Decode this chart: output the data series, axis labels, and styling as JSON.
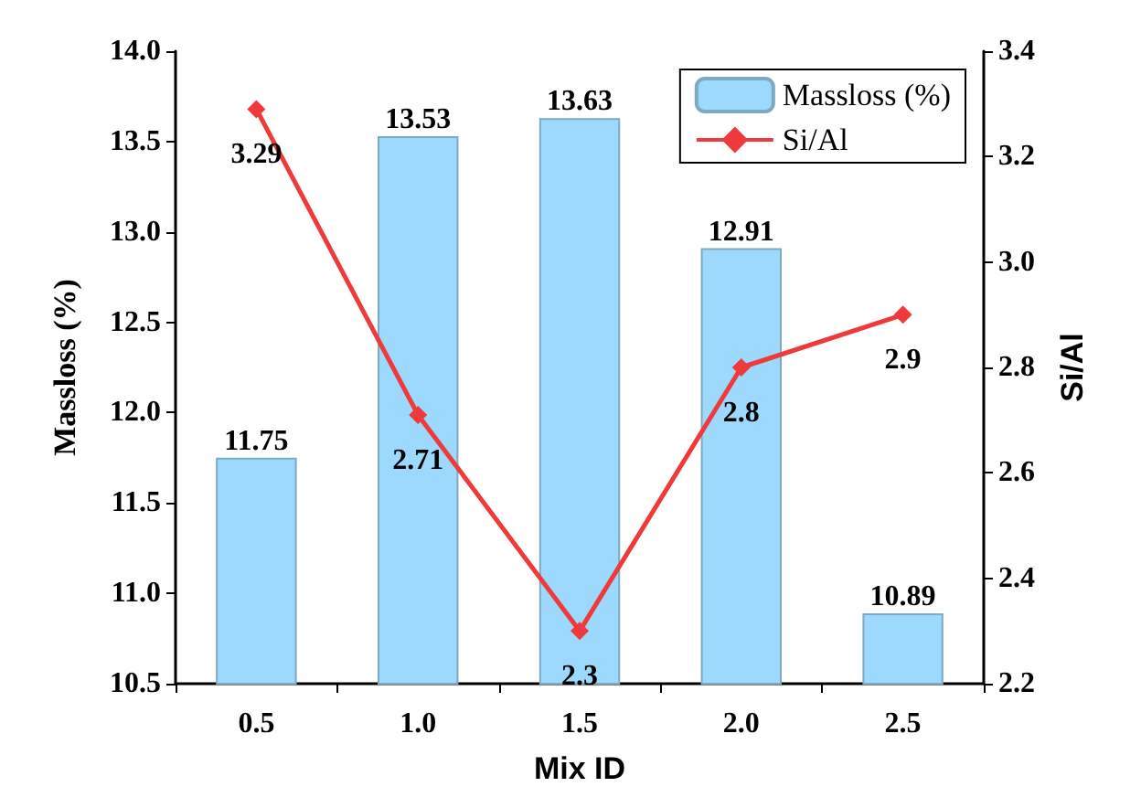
{
  "chart_data": {
    "type": "bar",
    "categories": [
      "0.5",
      "1.0",
      "1.5",
      "2.0",
      "2.5"
    ],
    "xlabel": "Mix ID",
    "ylabel": "Massloss (%)",
    "y2label": "Si/Al",
    "series": [
      {
        "name": "Massloss (%)",
        "color": "#9dd9fc",
        "values": [
          11.75,
          13.53,
          13.63,
          12.91,
          10.89
        ]
      },
      {
        "name": "Si/Al",
        "type": "line",
        "axis": "y2",
        "color": "#ee3a3a",
        "marker": "diamond",
        "values": [
          3.29,
          2.71,
          2.3,
          2.8,
          2.9
        ]
      }
    ],
    "ylim": [
      10.5,
      14
    ],
    "yticks": [
      {
        "value": 10.5,
        "label": "10.5"
      },
      {
        "value": 11,
        "label": "11.0"
      },
      {
        "value": 11.5,
        "label": "11.5"
      },
      {
        "value": 12,
        "label": "12.0"
      },
      {
        "value": 12.5,
        "label": "12.5"
      },
      {
        "value": 13,
        "label": "13.0"
      },
      {
        "value": 13.5,
        "label": "13.5"
      },
      {
        "value": 14,
        "label": "14.0"
      }
    ],
    "y2lim": [
      2.2,
      3.4
    ],
    "y2ticks": [
      {
        "value": 2.2,
        "label": "2.2"
      },
      {
        "value": 2.4,
        "label": "2.4"
      },
      {
        "value": 2.6,
        "label": "2.6"
      },
      {
        "value": 2.8,
        "label": "2.8"
      },
      {
        "value": 3,
        "label": "3.0"
      },
      {
        "value": 3.2,
        "label": "3.2"
      },
      {
        "value": 3.4,
        "label": "3.4"
      }
    ],
    "data_labels": true,
    "legend": "top right",
    "grid": false
  }
}
